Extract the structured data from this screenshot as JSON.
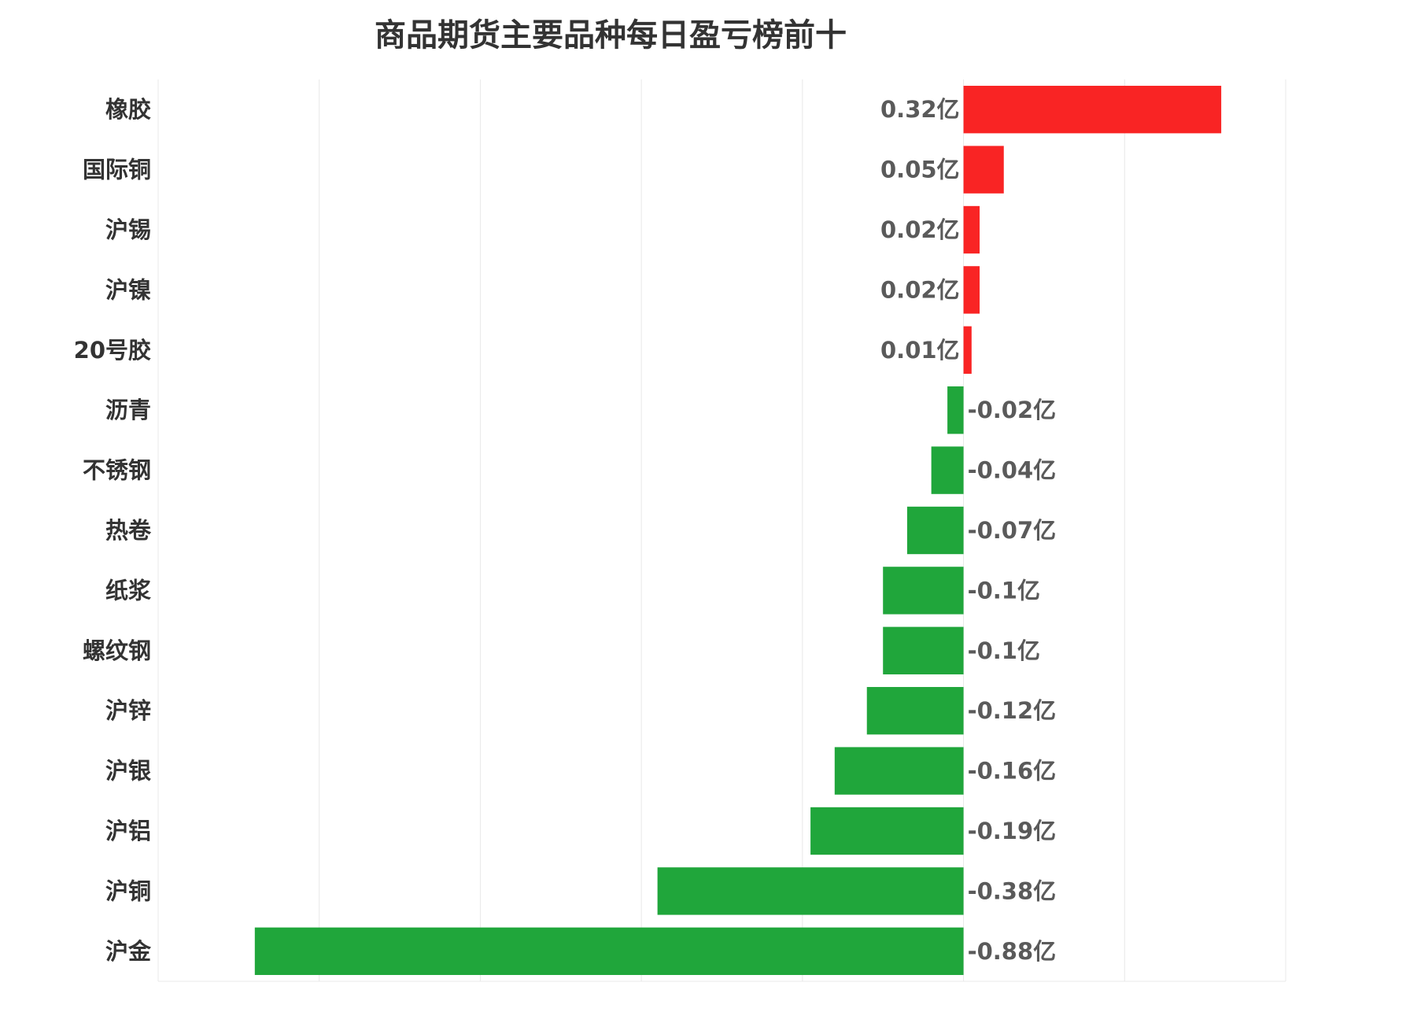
{
  "chart_data": {
    "type": "bar",
    "orientation": "horizontal",
    "title": "商品期货主要品种每日盈亏榜前十",
    "categories": [
      "橡胶",
      "国际铜",
      "沪锡",
      "沪镍",
      "20号胶",
      "沥青",
      "不锈钢",
      "热卷",
      "纸浆",
      "螺纹钢",
      "沪锌",
      "沪银",
      "沪铝",
      "沪铜",
      "沪金"
    ],
    "values": [
      0.32,
      0.05,
      0.02,
      0.02,
      0.01,
      -0.02,
      -0.04,
      -0.07,
      -0.1,
      -0.1,
      -0.12,
      -0.16,
      -0.19,
      -0.38,
      -0.88
    ],
    "value_labels": [
      "0.32亿",
      "0.05亿",
      "0.02亿",
      "0.02亿",
      "0.01亿",
      "-0.02亿",
      "-0.04亿",
      "-0.07亿",
      "-0.1亿",
      "-0.1亿",
      "-0.12亿",
      "-0.16亿",
      "-0.19亿",
      "-0.38亿",
      "-0.88亿"
    ],
    "unit": "亿",
    "xlim": [
      -1.0,
      0.4
    ],
    "grid_step": 0.2,
    "grid": true,
    "xlabel": "",
    "ylabel": "",
    "colors": {
      "positive": "#f92424",
      "negative": "#20a63b",
      "grid": "#e8e8e8"
    }
  }
}
